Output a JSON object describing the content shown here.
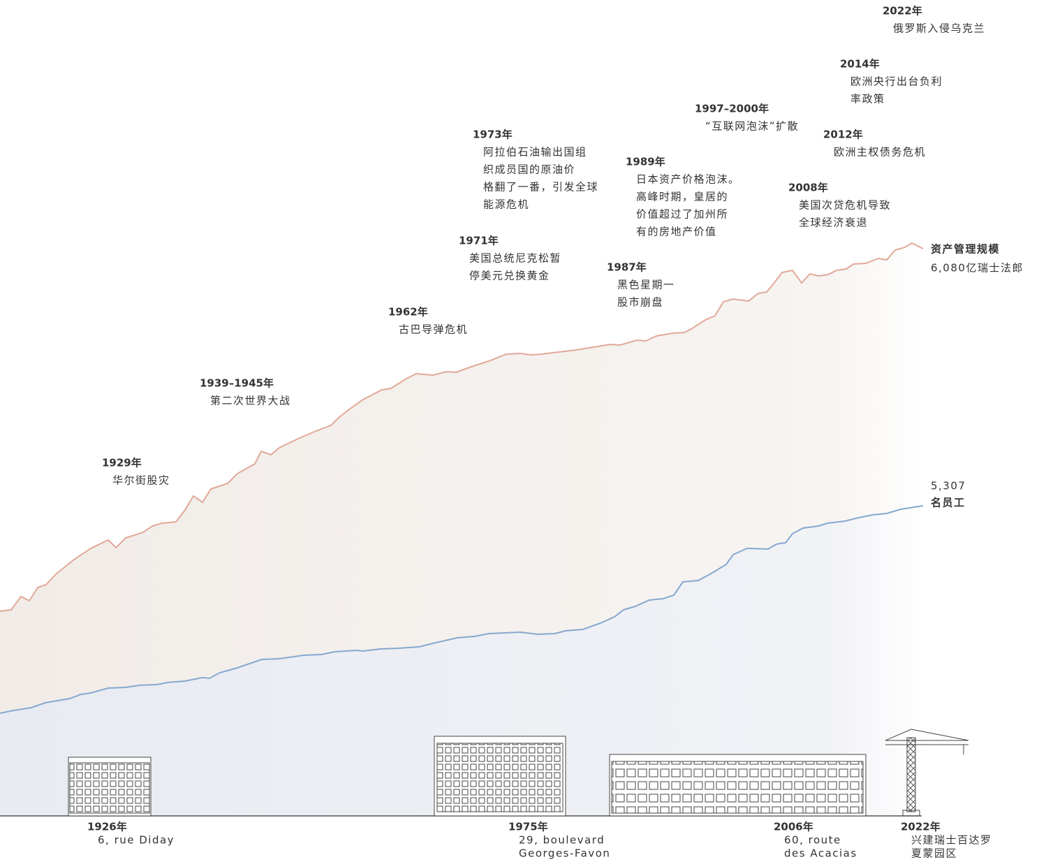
{
  "events": [
    {
      "year": "1929年",
      "text": [
        "华尔街股灾"
      ]
    },
    {
      "year": "1939–1945年",
      "text": [
        "第二次世界大战"
      ]
    },
    {
      "year": "1962年",
      "text": [
        "古巴导弹危机"
      ]
    },
    {
      "year": "1971年",
      "text": [
        "美国总统尼克松暂",
        "停美元兑换黄金"
      ]
    },
    {
      "year": "1973年",
      "text": [
        "阿拉伯石油输出国组",
        "织成员国的原油价",
        "格翻了一番，引发全球",
        "能源危机"
      ]
    },
    {
      "year": "1987年",
      "text": [
        "黑色星期一",
        "股市崩盘"
      ]
    },
    {
      "year": "1989年",
      "text": [
        "日本资产价格泡沫。",
        "高峰时期，皇居的",
        "价值超过了加州所",
        "有的房地产价值"
      ]
    },
    {
      "year": "1997–2000年",
      "text": [
        "“互联网泡沫”扩散"
      ]
    },
    {
      "year": "2008年",
      "text": [
        "美国次贷危机导致",
        "全球经济衰退"
      ]
    },
    {
      "year": "2012年",
      "text": [
        "欧洲主权债务危机"
      ]
    },
    {
      "year": "2014年",
      "text": [
        "欧洲央行出台负利",
        "率政策"
      ]
    },
    {
      "year": "2022年",
      "text": [
        "俄罗斯入侵乌克兰"
      ]
    }
  ],
  "series": [
    {
      "name": "资产管理规模",
      "label": "6,080亿瑞士法郎"
    },
    {
      "name": "名员工",
      "label": "5,307"
    }
  ],
  "locations": [
    {
      "year": "1926年",
      "text": [
        "6, rue Diday"
      ]
    },
    {
      "year": "1975年",
      "text": [
        "29, boulevard",
        "Georges-Favon"
      ]
    },
    {
      "year": "2006年",
      "text": [
        "60, route",
        "des Acacias"
      ]
    },
    {
      "year": "2022年",
      "text": [
        "兴建瑞士百达罗",
        "夏蒙园区"
      ]
    }
  ]
}
